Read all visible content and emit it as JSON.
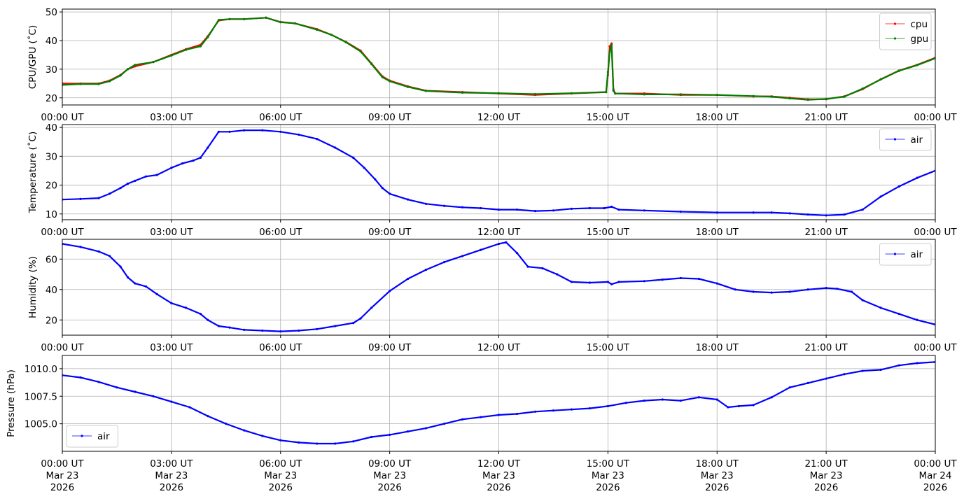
{
  "chart_data": [
    {
      "type": "line",
      "title": "",
      "ylabel": "CPU/GPU (˚C)",
      "xlabel": "",
      "xlim": [
        0,
        24
      ],
      "ylim": [
        17.5,
        51
      ],
      "yticks": [
        20,
        30,
        40,
        50
      ],
      "ytick_labels": [
        "20",
        "30",
        "40",
        "50"
      ],
      "xticks": [
        0,
        3,
        6,
        9,
        12,
        15,
        18,
        21,
        24
      ],
      "xtick_labels": [
        [
          "00:00 UT"
        ],
        [
          "03:00 UT"
        ],
        [
          "06:00 UT"
        ],
        [
          "09:00 UT"
        ],
        [
          "12:00 UT"
        ],
        [
          "15:00 UT"
        ],
        [
          "18:00 UT"
        ],
        [
          "21:00 UT"
        ],
        [
          "00:00 UT"
        ]
      ],
      "grid": true,
      "legend_position": "upper-right",
      "series": [
        {
          "name": "cpu",
          "color": "#ff0000",
          "x": [
            0,
            0.5,
            1.0,
            1.3,
            1.6,
            1.8,
            2.0,
            2.5,
            3.0,
            3.4,
            3.8,
            4.0,
            4.3,
            4.6,
            5.0,
            5.6,
            6.0,
            6.4,
            7.0,
            7.4,
            7.8,
            8.2,
            8.5,
            8.8,
            9.0,
            9.5,
            10.0,
            11.0,
            12.0,
            13.0,
            14.0,
            14.95,
            15.0,
            15.05,
            15.1,
            15.15,
            15.2,
            16.0,
            17.0,
            18.0,
            19.0,
            19.5,
            20.0,
            20.5,
            21.0,
            21.5,
            22.0,
            22.5,
            23.0,
            23.5,
            24.0
          ],
          "y": [
            25,
            25,
            25,
            26,
            28,
            30,
            31,
            32.5,
            35,
            37,
            38.5,
            41.5,
            47,
            47.5,
            47.5,
            48,
            46.5,
            46,
            44,
            42,
            39.5,
            36.5,
            32,
            27.5,
            26,
            24,
            22.5,
            22,
            21.5,
            21,
            21.5,
            22,
            28,
            38,
            39,
            23,
            21.5,
            21.5,
            21,
            21,
            20.5,
            20.5,
            20,
            19.5,
            19.5,
            20.5,
            23,
            26.5,
            29.5,
            31.5,
            34
          ]
        },
        {
          "name": "gpu",
          "color": "#008000",
          "x": [
            0,
            0.5,
            1.0,
            1.3,
            1.6,
            1.8,
            2.0,
            2.5,
            3.0,
            3.4,
            3.8,
            4.0,
            4.3,
            4.6,
            5.0,
            5.6,
            6.0,
            6.4,
            7.0,
            7.4,
            7.8,
            8.2,
            8.5,
            8.8,
            9.0,
            9.5,
            10.0,
            11.0,
            12.0,
            13.0,
            14.0,
            14.95,
            15.0,
            15.05,
            15.1,
            15.15,
            15.2,
            16.0,
            17.0,
            18.0,
            19.0,
            19.5,
            20.0,
            20.5,
            21.0,
            21.5,
            22.0,
            22.5,
            23.0,
            23.5,
            24.0
          ],
          "y": [
            24.5,
            24.8,
            24.8,
            25.8,
            27.8,
            30,
            31.5,
            32.5,
            34.8,
            36.8,
            38,
            41.2,
            47.2,
            47.5,
            47.5,
            48,
            46.4,
            46,
            43.8,
            42,
            39.4,
            36.2,
            31.8,
            27.2,
            25.8,
            23.8,
            22.4,
            21.8,
            21.6,
            21.3,
            21.6,
            22,
            29,
            36,
            38.5,
            22.5,
            21.5,
            21.2,
            21.2,
            21,
            20.6,
            20.4,
            19.8,
            19.3,
            19.6,
            20.4,
            23.2,
            26.4,
            29.4,
            31.4,
            33.8
          ]
        }
      ]
    },
    {
      "type": "line",
      "title": "",
      "ylabel": "Temperature (˚C)",
      "xlabel": "",
      "xlim": [
        0,
        24
      ],
      "ylim": [
        8,
        41
      ],
      "yticks": [
        10,
        20,
        30,
        40
      ],
      "ytick_labels": [
        "10",
        "20",
        "30",
        "40"
      ],
      "xticks": [
        0,
        3,
        6,
        9,
        12,
        15,
        18,
        21,
        24
      ],
      "xtick_labels": [
        [
          "00:00 UT"
        ],
        [
          "03:00 UT"
        ],
        [
          "06:00 UT"
        ],
        [
          "09:00 UT"
        ],
        [
          "12:00 UT"
        ],
        [
          "15:00 UT"
        ],
        [
          "18:00 UT"
        ],
        [
          "21:00 UT"
        ],
        [
          "00:00 UT"
        ]
      ],
      "grid": true,
      "legend_position": "upper-right",
      "series": [
        {
          "name": "air",
          "color": "#0000ff",
          "x": [
            0,
            0.5,
            1.0,
            1.3,
            1.6,
            1.8,
            2.0,
            2.3,
            2.6,
            3.0,
            3.3,
            3.6,
            3.8,
            4.0,
            4.3,
            4.6,
            5.0,
            5.5,
            6.0,
            6.5,
            7.0,
            7.5,
            8.0,
            8.3,
            8.6,
            8.8,
            9.0,
            9.5,
            10.0,
            10.5,
            11.0,
            11.5,
            12.0,
            12.5,
            13.0,
            13.5,
            14.0,
            14.5,
            14.9,
            15.1,
            15.3,
            16.0,
            17.0,
            18.0,
            19.0,
            19.5,
            20.0,
            20.5,
            21.0,
            21.5,
            22.0,
            22.5,
            23.0,
            23.5,
            24.0
          ],
          "y": [
            15,
            15.2,
            15.5,
            17,
            19,
            20.5,
            21.5,
            23,
            23.5,
            26,
            27.5,
            28.5,
            29.5,
            33,
            38.5,
            38.5,
            39,
            39,
            38.5,
            37.5,
            36,
            33,
            29.5,
            26,
            22,
            19,
            17,
            15,
            13.5,
            12.8,
            12.3,
            12,
            11.5,
            11.5,
            11,
            11.2,
            11.8,
            12,
            12,
            12.5,
            11.5,
            11.2,
            10.8,
            10.5,
            10.5,
            10.5,
            10.2,
            9.8,
            9.5,
            9.8,
            11.5,
            16,
            19.5,
            22.5,
            25
          ]
        }
      ]
    },
    {
      "type": "line",
      "title": "",
      "ylabel": "Humidity (%)",
      "xlabel": "",
      "xlim": [
        0,
        24
      ],
      "ylim": [
        10,
        73
      ],
      "yticks": [
        20,
        40,
        60
      ],
      "ytick_labels": [
        "20",
        "40",
        "60"
      ],
      "xticks": [
        0,
        3,
        6,
        9,
        12,
        15,
        18,
        21,
        24
      ],
      "xtick_labels": [
        [
          "00:00 UT"
        ],
        [
          "03:00 UT"
        ],
        [
          "06:00 UT"
        ],
        [
          "09:00 UT"
        ],
        [
          "12:00 UT"
        ],
        [
          "15:00 UT"
        ],
        [
          "18:00 UT"
        ],
        [
          "21:00 UT"
        ],
        [
          "00:00 UT"
        ]
      ],
      "grid": true,
      "legend_position": "upper-right",
      "series": [
        {
          "name": "air",
          "color": "#0000ff",
          "x": [
            0,
            0.5,
            1.0,
            1.3,
            1.6,
            1.8,
            2.0,
            2.3,
            2.6,
            3.0,
            3.4,
            3.8,
            4.0,
            4.3,
            4.6,
            5.0,
            5.5,
            6.0,
            6.5,
            7.0,
            7.5,
            8.0,
            8.2,
            8.5,
            9.0,
            9.5,
            10.0,
            10.5,
            11.0,
            11.5,
            12.0,
            12.2,
            12.5,
            12.8,
            13.2,
            13.6,
            14.0,
            14.5,
            15.0,
            15.1,
            15.3,
            16.0,
            16.5,
            17.0,
            17.5,
            18.0,
            18.5,
            19.0,
            19.5,
            20.0,
            20.5,
            21.0,
            21.3,
            21.7,
            22.0,
            22.5,
            23.0,
            23.5,
            24.0
          ],
          "y": [
            70,
            68,
            65,
            62,
            55,
            48,
            44,
            42,
            37,
            31,
            28,
            24,
            20,
            16,
            15,
            13.5,
            13,
            12.5,
            13,
            14,
            16,
            18,
            21,
            28,
            39,
            47,
            53,
            58,
            62,
            66,
            70,
            71,
            64,
            55,
            54,
            50,
            45,
            44.5,
            45,
            43.5,
            45,
            45.5,
            46.5,
            47.5,
            47,
            44,
            40,
            38.5,
            38,
            38.5,
            40,
            41,
            40.5,
            38.5,
            33,
            28,
            24,
            20,
            17
          ]
        }
      ]
    },
    {
      "type": "line",
      "title": "",
      "ylabel": "Pressure (hPa)",
      "xlabel": "",
      "xlim": [
        0,
        24
      ],
      "ylim": [
        1002.5,
        1011.2
      ],
      "yticks": [
        1005.0,
        1007.5,
        1010.0
      ],
      "ytick_labels": [
        "1005.0",
        "1007.5",
        "1010.0"
      ],
      "xticks": [
        0,
        3,
        6,
        9,
        12,
        15,
        18,
        21,
        24
      ],
      "xtick_labels": [
        [
          "00:00 UT",
          "Mar 23",
          "2026"
        ],
        [
          "03:00 UT",
          "Mar 23",
          "2026"
        ],
        [
          "06:00 UT",
          "Mar 23",
          "2026"
        ],
        [
          "09:00 UT",
          "Mar 23",
          "2026"
        ],
        [
          "12:00 UT",
          "Mar 23",
          "2026"
        ],
        [
          "15:00 UT",
          "Mar 23",
          "2026"
        ],
        [
          "18:00 UT",
          "Mar 23",
          "2026"
        ],
        [
          "21:00 UT",
          "Mar 23",
          "2026"
        ],
        [
          "00:00 UT",
          "Mar 24",
          "2026"
        ]
      ],
      "grid": true,
      "legend_position": "lower-left",
      "series": [
        {
          "name": "air",
          "color": "#0000ff",
          "x": [
            0,
            0.5,
            1.0,
            1.5,
            2.0,
            2.5,
            3.0,
            3.5,
            4.0,
            4.5,
            5.0,
            5.5,
            6.0,
            6.5,
            7.0,
            7.5,
            8.0,
            8.5,
            9.0,
            9.5,
            10.0,
            10.5,
            11.0,
            11.5,
            12.0,
            12.5,
            13.0,
            13.5,
            14.0,
            14.5,
            15.0,
            15.5,
            16.0,
            16.5,
            17.0,
            17.5,
            18.0,
            18.3,
            18.6,
            19.0,
            19.5,
            20.0,
            20.5,
            21.0,
            21.5,
            22.0,
            22.5,
            23.0,
            23.5,
            24.0
          ],
          "y": [
            1009.4,
            1009.2,
            1008.8,
            1008.3,
            1007.9,
            1007.5,
            1007.0,
            1006.5,
            1005.7,
            1005.0,
            1004.4,
            1003.9,
            1003.5,
            1003.3,
            1003.2,
            1003.2,
            1003.4,
            1003.8,
            1004.0,
            1004.3,
            1004.6,
            1005.0,
            1005.4,
            1005.6,
            1005.8,
            1005.9,
            1006.1,
            1006.2,
            1006.3,
            1006.4,
            1006.6,
            1006.9,
            1007.1,
            1007.2,
            1007.1,
            1007.4,
            1007.2,
            1006.5,
            1006.6,
            1006.7,
            1007.4,
            1008.3,
            1008.7,
            1009.1,
            1009.5,
            1009.8,
            1009.9,
            1010.3,
            1010.5,
            1010.6
          ]
        }
      ]
    }
  ]
}
